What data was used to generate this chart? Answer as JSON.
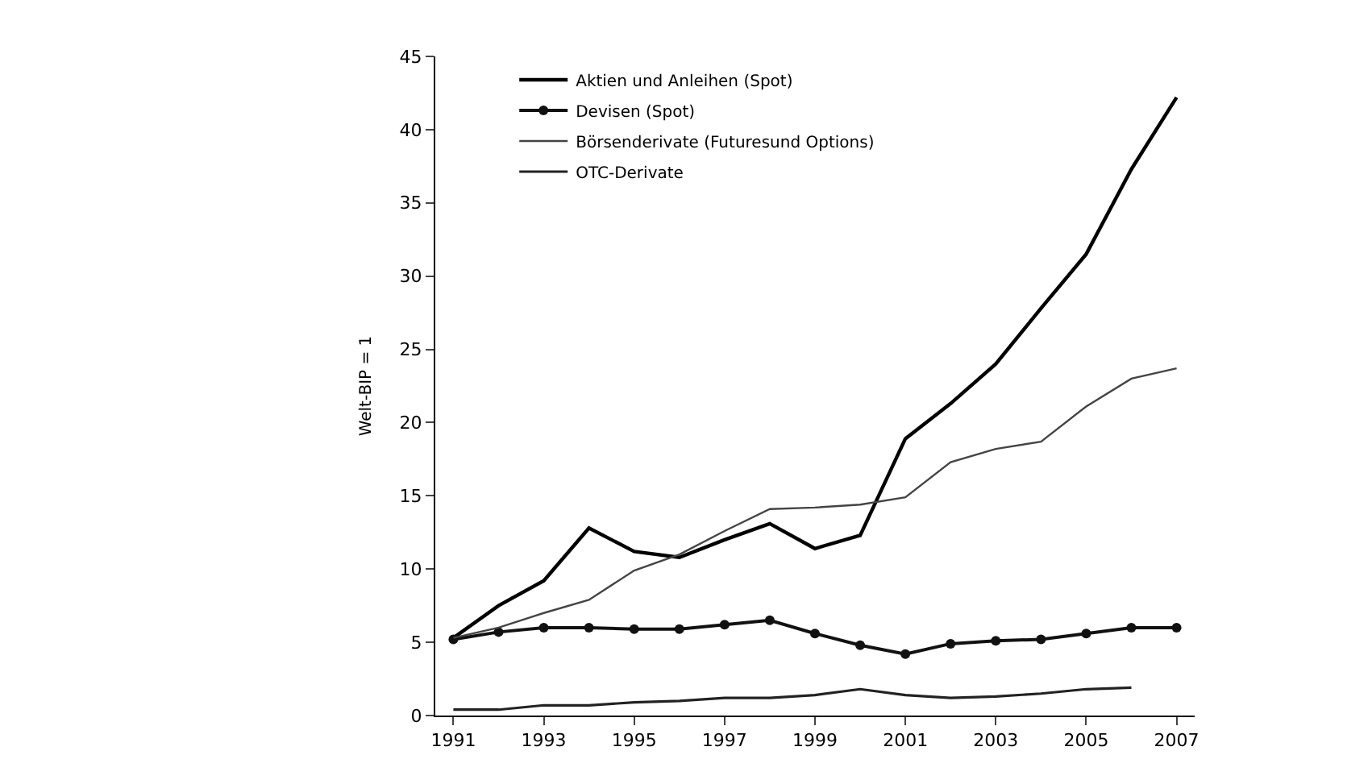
{
  "chart_data": {
    "type": "line",
    "ylabel": "Welt-BIP = 1",
    "x": [
      1991,
      1992,
      1993,
      1994,
      1995,
      1996,
      1997,
      1998,
      1999,
      2000,
      2001,
      2002,
      2003,
      2004,
      2005,
      2006,
      2007
    ],
    "series": [
      {
        "name": "Aktien und Anleihen (Spot)",
        "color": "#000000",
        "values": [
          5.3,
          7.5,
          9.2,
          12.8,
          11.2,
          10.8,
          12.0,
          13.1,
          11.4,
          12.3,
          18.9,
          21.3,
          24.0,
          27.8,
          31.5,
          37.3,
          42.2
        ]
      },
      {
        "name": "Devisen (Spot)",
        "color": "#111111",
        "marker": "circle",
        "values": [
          5.2,
          5.7,
          6.0,
          6.0,
          5.9,
          5.9,
          6.2,
          6.5,
          5.6,
          4.8,
          4.2,
          4.9,
          5.1,
          5.2,
          5.6,
          6.0,
          6.0
        ]
      },
      {
        "name": "Börsenderivate (Futuresund Options)",
        "color": "#444444",
        "values": [
          5.3,
          6.0,
          7.0,
          7.9,
          9.9,
          11.0,
          12.6,
          14.1,
          14.2,
          14.4,
          14.9,
          17.3,
          18.2,
          18.7,
          21.1,
          23.0,
          23.7
        ]
      },
      {
        "name": "OTC-Derivate",
        "color": "#222222",
        "values": [
          0.4,
          0.4,
          0.7,
          0.7,
          0.9,
          1.0,
          1.2,
          1.2,
          1.4,
          1.8,
          1.4,
          1.2,
          1.3,
          1.5,
          1.8,
          1.9,
          null
        ]
      }
    ],
    "xlim": [
      1990.6,
      2007.4
    ],
    "xticks": [
      1991,
      1993,
      1995,
      1997,
      1999,
      2001,
      2003,
      2005,
      2007
    ],
    "ylim": [
      0,
      45
    ],
    "yticks": [
      0,
      5,
      10,
      15,
      20,
      25,
      30,
      35,
      40,
      45
    ],
    "legend": "top left"
  }
}
